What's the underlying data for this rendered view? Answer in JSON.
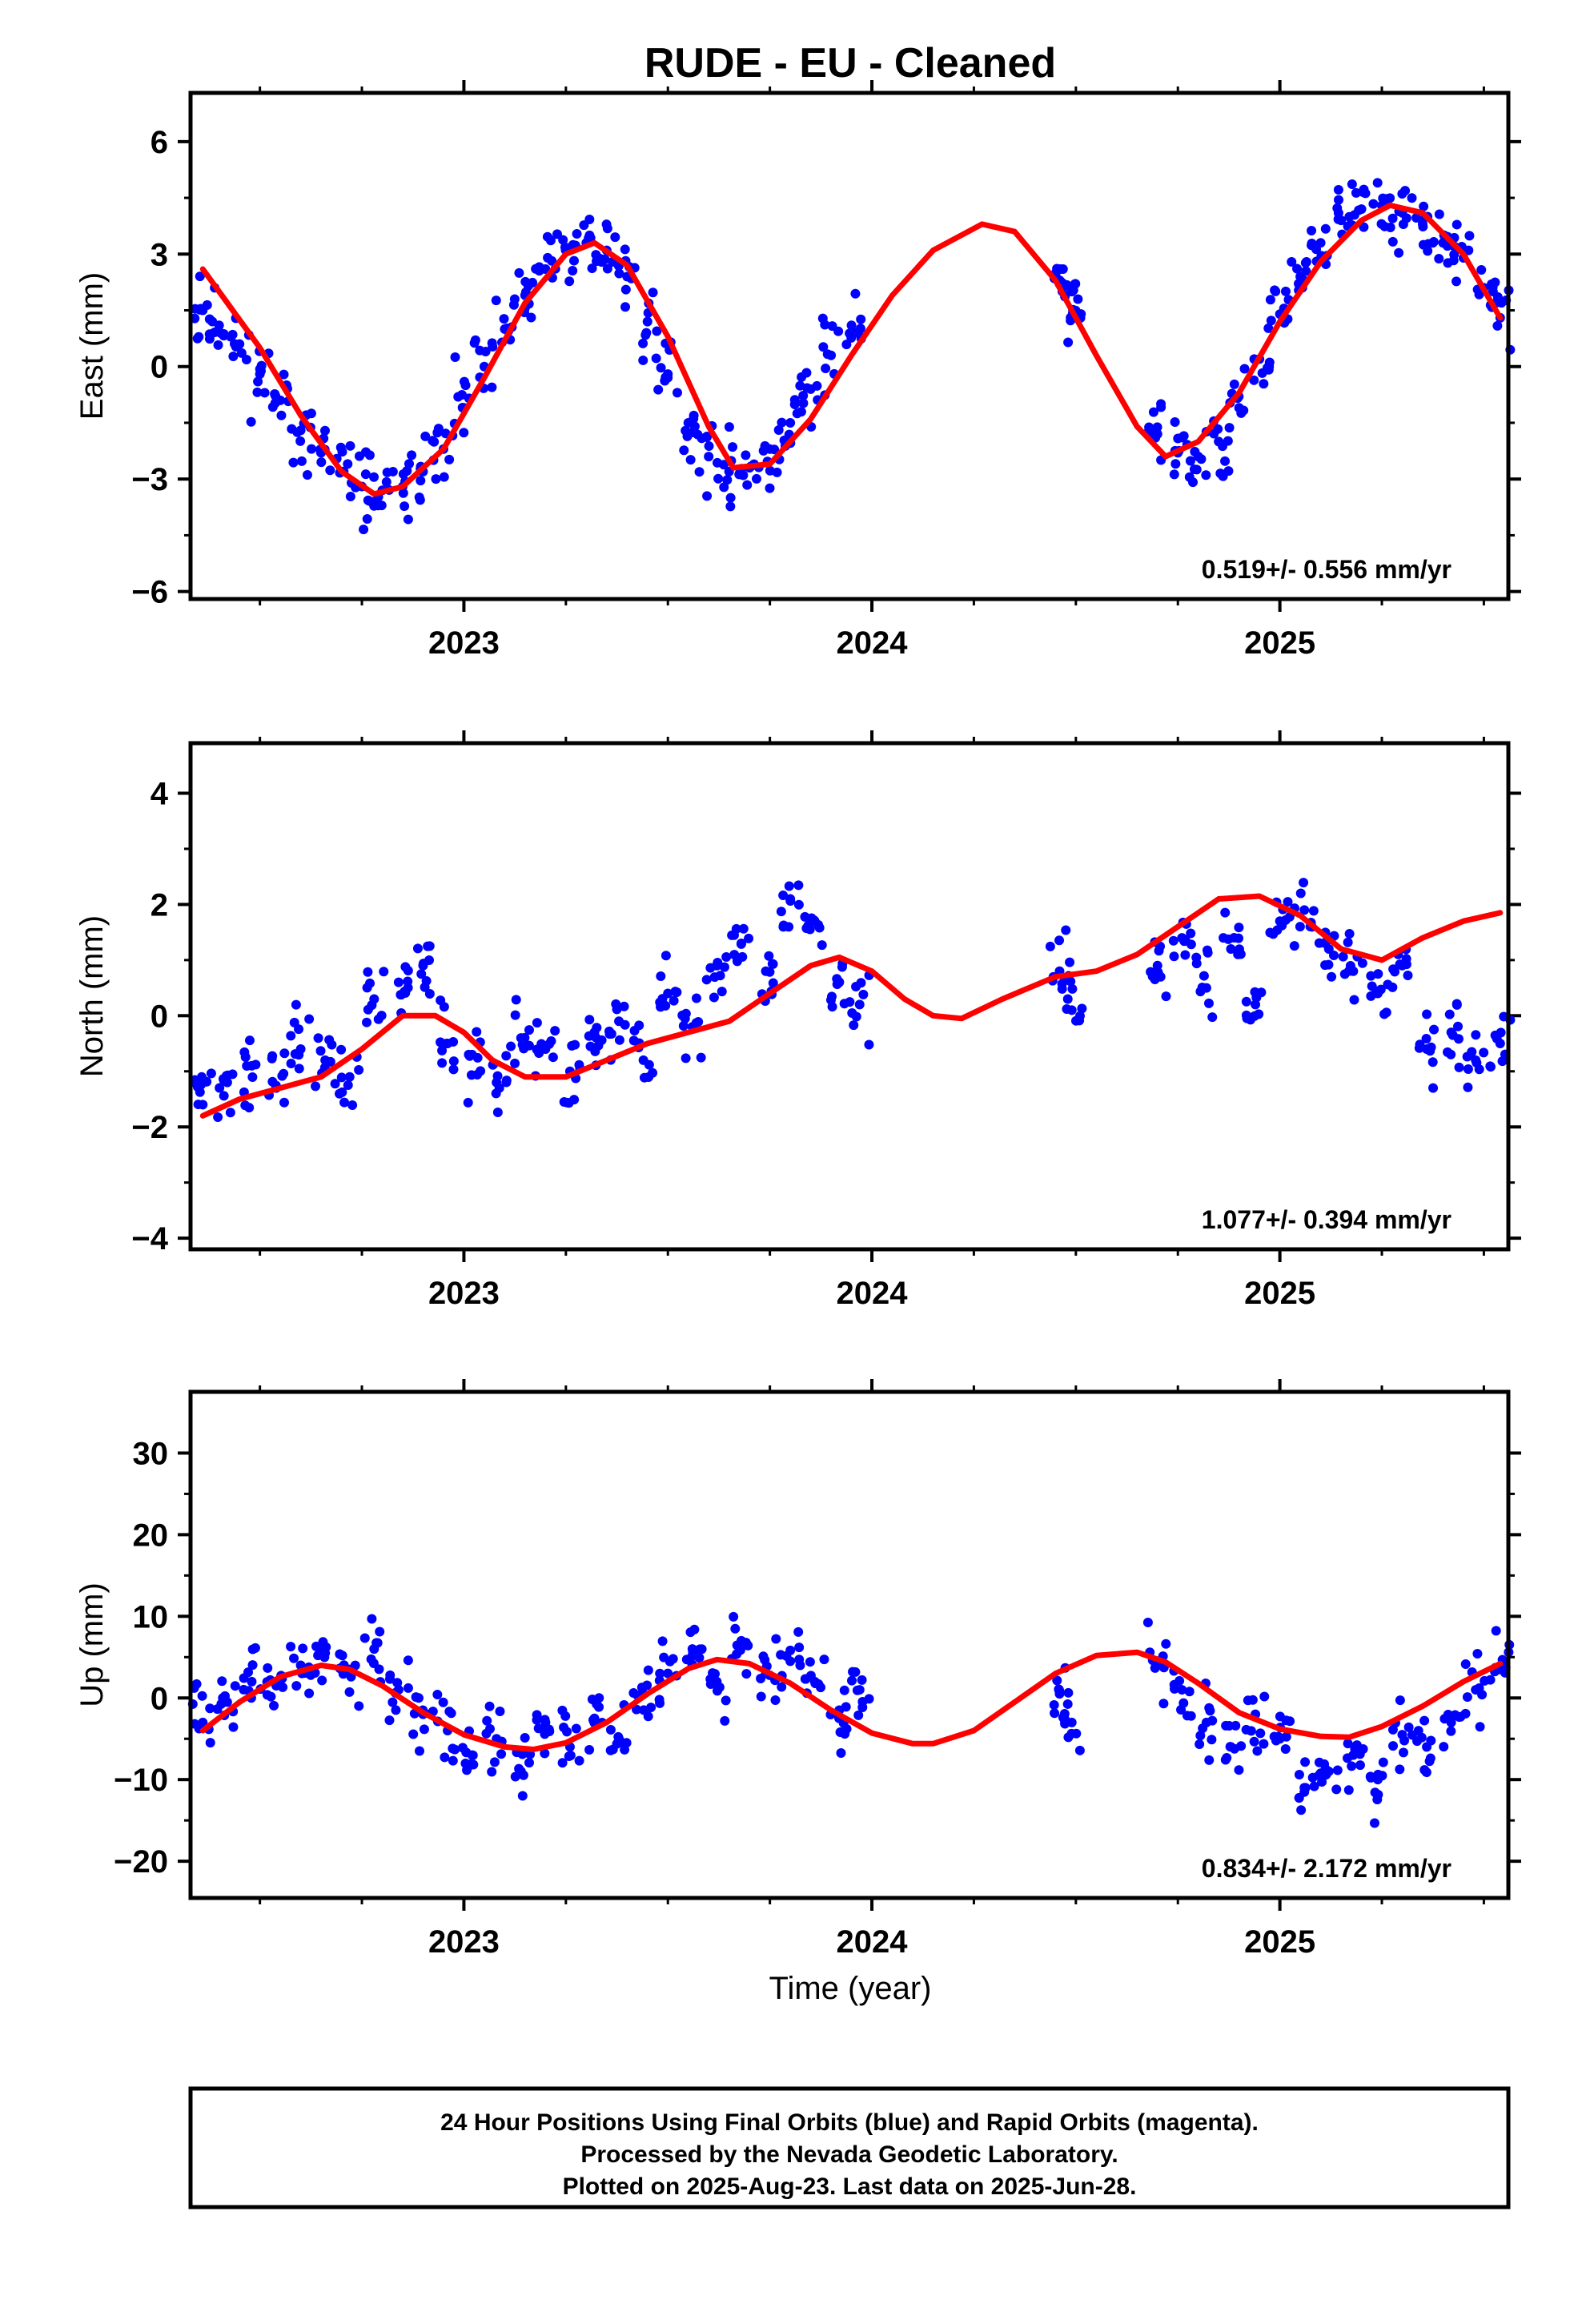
{
  "title": "RUDE  - EU - Cleaned",
  "xlabel": "Time (year)",
  "footer": {
    "line1": "24 Hour Positions Using Final Orbits (blue) and Rapid Orbits (magenta).",
    "line2": "Processed by the Nevada Geodetic Laboratory.",
    "line3": "Plotted on 2025-Aug-23. Last data on 2025-Jun-28."
  },
  "colors": {
    "final_orbits": "#0000ff",
    "fit": "#ff0000",
    "frame": "#000000"
  },
  "chart_data": [
    {
      "type": "scatter",
      "component": "east",
      "ylabel": "East (mm)",
      "rate": "0.519+/- 0.556 mm/yr",
      "xlim": [
        2022.33,
        2025.56
      ],
      "ylim": [
        -6.2,
        7.3
      ],
      "yticks": [
        -6,
        -3,
        0,
        3,
        6
      ],
      "yticklabels": [
        "−6",
        "−3",
        "0",
        "3",
        "6"
      ],
      "xticks": [
        2023,
        2024,
        2025
      ],
      "xticklabels": [
        "2023",
        "2024",
        "2025"
      ],
      "x_minor_ticks": [
        2022.5,
        2022.75,
        2023.25,
        2023.5,
        2023.75,
        2024.25,
        2024.5,
        2024.75,
        2025.25,
        2025.5
      ],
      "series": [
        {
          "kind": "points",
          "x": [
            2022.36,
            2022.4,
            2022.45,
            2022.5,
            2022.55,
            2022.6,
            2022.65,
            2022.7,
            2022.75,
            2022.8,
            2022.85,
            2022.9,
            2022.95,
            2023.0,
            2023.05,
            2023.1,
            2023.15,
            2023.2,
            2023.25,
            2023.3,
            2023.35,
            2023.4,
            2023.45,
            2023.5,
            2023.55,
            2023.6,
            2023.65,
            2023.7,
            2023.75,
            2023.8,
            2023.85,
            2023.9,
            2023.95,
            2024.46,
            2024.49,
            2024.5,
            2024.7,
            2024.75,
            2024.8,
            2024.85,
            2024.9,
            2024.95,
            2025.0,
            2025.05,
            2025.1,
            2025.15,
            2025.2,
            2025.25,
            2025.3,
            2025.35,
            2025.4,
            2025.45,
            2025.5,
            2025.54
          ],
          "y": [
            1.5,
            1.1,
            0.6,
            -0.2,
            -0.9,
            -1.7,
            -2.3,
            -2.8,
            -3.2,
            -3.3,
            -3.2,
            -2.8,
            -2.2,
            -1.1,
            0.0,
            1.0,
            1.9,
            2.6,
            3.1,
            3.3,
            3.1,
            2.4,
            1.2,
            -0.2,
            -1.5,
            -2.4,
            -2.8,
            -2.7,
            -2.2,
            -1.5,
            -0.6,
            0.3,
            1.1,
            2.3,
            2.0,
            1.4,
            -1.8,
            -2.3,
            -2.4,
            -2.0,
            -1.1,
            0.2,
            1.4,
            2.4,
            3.3,
            3.9,
            4.2,
            4.3,
            4.1,
            3.8,
            3.3,
            2.9,
            2.1,
            1.3
          ]
        },
        {
          "kind": "fit",
          "x": [
            2022.36,
            2022.5,
            2022.6,
            2022.7,
            2022.78,
            2022.85,
            2022.95,
            2023.05,
            2023.15,
            2023.25,
            2023.32,
            2023.4,
            2023.5,
            2023.6,
            2023.66,
            2023.75,
            2023.85,
            2023.95,
            2024.05,
            2024.15,
            2024.27,
            2024.35,
            2024.45,
            2024.55,
            2024.65,
            2024.72,
            2024.8,
            2024.9,
            2025.0,
            2025.1,
            2025.2,
            2025.27,
            2025.35,
            2025.45,
            2025.54
          ],
          "y": [
            2.6,
            0.5,
            -1.3,
            -2.8,
            -3.4,
            -3.2,
            -2.2,
            -0.3,
            1.7,
            3.0,
            3.3,
            2.7,
            0.8,
            -1.6,
            -2.7,
            -2.6,
            -1.4,
            0.3,
            1.9,
            3.1,
            3.8,
            3.6,
            2.3,
            0.3,
            -1.6,
            -2.4,
            -2.0,
            -0.7,
            1.2,
            2.8,
            3.9,
            4.3,
            4.1,
            3.0,
            1.3
          ]
        }
      ]
    },
    {
      "type": "scatter",
      "component": "north",
      "ylabel": "North (mm)",
      "rate": "1.077+/- 0.394 mm/yr",
      "xlim": [
        2022.33,
        2025.56
      ],
      "ylim": [
        -4.2,
        4.9
      ],
      "yticks": [
        -4,
        -2,
        0,
        2,
        4
      ],
      "yticklabels": [
        "−4",
        "−2",
        "0",
        "2",
        "4"
      ],
      "xticks": [
        2023,
        2024,
        2025
      ],
      "xticklabels": [
        "2023",
        "2024",
        "2025"
      ],
      "x_minor_ticks": [
        2022.5,
        2022.75,
        2023.25,
        2023.5,
        2023.75,
        2024.25,
        2024.5,
        2024.75,
        2025.25,
        2025.5
      ],
      "series": [
        {
          "kind": "points",
          "x": [
            2022.36,
            2022.42,
            2022.48,
            2022.54,
            2022.6,
            2022.66,
            2022.72,
            2022.78,
            2022.84,
            2022.9,
            2022.96,
            2023.02,
            2023.08,
            2023.14,
            2023.2,
            2023.26,
            2023.32,
            2023.38,
            2023.44,
            2023.5,
            2023.56,
            2023.62,
            2023.68,
            2023.74,
            2023.8,
            2023.86,
            2023.92,
            2023.97,
            2024.46,
            2024.49,
            2024.7,
            2024.76,
            2024.82,
            2024.88,
            2024.94,
            2025.0,
            2025.06,
            2025.12,
            2025.18,
            2025.24,
            2025.3,
            2025.36,
            2025.42,
            2025.48,
            2025.54
          ],
          "y": [
            -1.6,
            -1.2,
            -0.9,
            -1.3,
            -0.6,
            -0.8,
            -1.1,
            0.3,
            0.6,
            0.9,
            -0.5,
            -0.7,
            -1.2,
            -0.4,
            -0.6,
            -1.0,
            -0.3,
            -0.1,
            -0.8,
            0.4,
            -0.2,
            0.9,
            1.3,
            0.8,
            2.1,
            1.7,
            0.6,
            0.2,
            0.8,
            0.1,
            0.9,
            1.4,
            0.5,
            1.2,
            0.2,
            1.7,
            1.9,
            1.2,
            0.8,
            0.4,
            0.9,
            -0.6,
            -0.3,
            -0.8,
            -0.5
          ]
        },
        {
          "kind": "fit",
          "x": [
            2022.36,
            2022.45,
            2022.55,
            2022.65,
            2022.75,
            2022.85,
            2022.93,
            2023.0,
            2023.07,
            2023.15,
            2023.25,
            2023.35,
            2023.45,
            2023.55,
            2023.65,
            2023.75,
            2023.85,
            2023.92,
            2024.0,
            2024.08,
            2024.15,
            2024.22,
            2024.32,
            2024.45,
            2024.55,
            2024.65,
            2024.75,
            2024.85,
            2024.95,
            2025.05,
            2025.15,
            2025.25,
            2025.35,
            2025.45,
            2025.54
          ],
          "y": [
            -1.8,
            -1.5,
            -1.3,
            -1.1,
            -0.6,
            0.0,
            0.0,
            -0.3,
            -0.8,
            -1.1,
            -1.1,
            -0.8,
            -0.5,
            -0.3,
            -0.1,
            0.4,
            0.9,
            1.05,
            0.8,
            0.3,
            0.0,
            -0.05,
            0.3,
            0.7,
            0.8,
            1.1,
            1.6,
            2.1,
            2.15,
            1.8,
            1.2,
            1.0,
            1.4,
            1.7,
            1.85
          ]
        }
      ]
    },
    {
      "type": "scatter",
      "component": "up",
      "ylabel": "Up (mm)",
      "rate": "0.834+/- 2.172 mm/yr",
      "xlim": [
        2022.33,
        2025.56
      ],
      "ylim": [
        -24.5,
        37.5
      ],
      "yticks": [
        -20,
        -10,
        0,
        10,
        20,
        30
      ],
      "yticklabels": [
        "−20",
        "−10",
        "0",
        "10",
        "20",
        "30"
      ],
      "xticks": [
        2023,
        2024,
        2025
      ],
      "xticklabels": [
        "2023",
        "2024",
        "2025"
      ],
      "x_minor_ticks": [
        2022.5,
        2022.75,
        2023.25,
        2023.5,
        2023.75,
        2024.25,
        2024.5,
        2024.75,
        2025.25,
        2025.5
      ],
      "series": [
        {
          "kind": "points",
          "x": [
            2022.36,
            2022.42,
            2022.48,
            2022.54,
            2022.6,
            2022.66,
            2022.72,
            2022.78,
            2022.84,
            2022.9,
            2022.96,
            2023.02,
            2023.08,
            2023.14,
            2023.2,
            2023.26,
            2023.32,
            2023.38,
            2023.44,
            2023.5,
            2023.56,
            2023.62,
            2023.68,
            2023.74,
            2023.8,
            2023.86,
            2023.92,
            2023.97,
            2024.46,
            2024.49,
            2024.7,
            2024.76,
            2024.82,
            2024.88,
            2024.94,
            2025.0,
            2025.06,
            2025.12,
            2025.18,
            2025.24,
            2025.3,
            2025.36,
            2025.42,
            2025.48,
            2025.54
          ],
          "y": [
            -3.0,
            -0.5,
            2.0,
            1.5,
            4.0,
            5.5,
            3.5,
            6.0,
            1.0,
            -2.0,
            -4.0,
            -7.0,
            -5.0,
            -9.0,
            -3.0,
            -6.0,
            -2.5,
            -5.0,
            0.5,
            3.0,
            6.0,
            2.0,
            7.0,
            3.0,
            4.5,
            2.0,
            -1.5,
            1.0,
            0.5,
            -3.0,
            4.5,
            1.0,
            -3.0,
            -6.0,
            -2.0,
            -5.0,
            -11.0,
            -9.0,
            -7.0,
            -10.0,
            -4.5,
            -6.0,
            -3.0,
            1.0,
            3.5
          ]
        },
        {
          "kind": "fit",
          "x": [
            2022.36,
            2022.45,
            2022.55,
            2022.65,
            2022.72,
            2022.8,
            2022.9,
            2023.0,
            2023.1,
            2023.17,
            2023.25,
            2023.35,
            2023.45,
            2023.55,
            2023.62,
            2023.7,
            2023.8,
            2023.9,
            2024.0,
            2024.1,
            2024.15,
            2024.25,
            2024.35,
            2024.45,
            2024.55,
            2024.65,
            2024.72,
            2024.8,
            2024.9,
            2025.0,
            2025.1,
            2025.17,
            2025.25,
            2025.35,
            2025.45,
            2025.54
          ],
          "y": [
            -4.0,
            -0.5,
            2.6,
            4.0,
            3.5,
            1.5,
            -1.8,
            -4.5,
            -6.0,
            -6.3,
            -5.5,
            -3.0,
            0.5,
            3.6,
            4.7,
            4.2,
            1.8,
            -1.5,
            -4.3,
            -5.6,
            -5.6,
            -4.0,
            -0.5,
            3.0,
            5.2,
            5.6,
            4.4,
            1.8,
            -1.8,
            -3.8,
            -4.7,
            -4.8,
            -3.5,
            -1.0,
            2.0,
            4.2
          ]
        }
      ]
    }
  ]
}
